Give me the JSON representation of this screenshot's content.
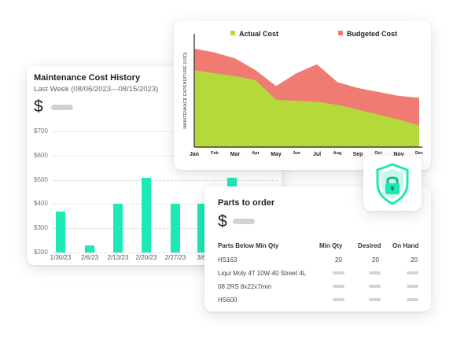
{
  "history": {
    "title": "Maintenance Cost History",
    "subtitle": "Last Week (08/06/2023—08/15/2023)",
    "currency": "$",
    "y_ticks": [
      "$700",
      "$600",
      "$500",
      "$400",
      "$300",
      "$200"
    ],
    "x_ticks": [
      "1/30/23",
      "2/6/23",
      "2/13/23",
      "2/20/23",
      "2/27/23",
      "3/6/",
      ""
    ],
    "chart_data": {
      "type": "bar",
      "categories": [
        "1/30/23",
        "2/6/23",
        "2/13/23",
        "2/20/23",
        "2/27/23",
        "3/6/",
        ""
      ],
      "values": [
        370,
        230,
        400,
        510,
        400,
        400,
        510
      ],
      "ylim": [
        200,
        700
      ]
    }
  },
  "area": {
    "legend": [
      {
        "label": "Actual Cost",
        "color": "#b5d93a"
      },
      {
        "label": "Budgeted Cost",
        "color": "#ef7b73"
      }
    ],
    "ylabel": "MAINTENANCE EXPENDITURE (USD)",
    "months": [
      "Jan",
      "Feb",
      "Mar",
      "Apr",
      "May",
      "Jun",
      "Jul",
      "Aug",
      "Sep",
      "Oct",
      "Nov",
      "Dec"
    ],
    "chart_data": {
      "type": "area",
      "x": [
        "Jan",
        "Feb",
        "Mar",
        "Apr",
        "May",
        "Jun",
        "Jul",
        "Aug",
        "Sep",
        "Oct",
        "Nov",
        "Dec"
      ],
      "series": [
        {
          "name": "Actual Cost",
          "values": [
            78,
            75,
            72,
            68,
            48,
            47,
            46,
            43,
            38,
            33,
            28,
            22
          ]
        },
        {
          "name": "Budgeted Cost",
          "values": [
            100,
            96,
            90,
            78,
            62,
            75,
            84,
            66,
            60,
            56,
            52,
            50
          ]
        }
      ],
      "ylim": [
        0,
        115
      ]
    }
  },
  "parts": {
    "title": "Parts to order",
    "currency": "$",
    "headers": [
      "Parts Below Min Qty",
      "Min Qty",
      "Desired",
      "On Hand"
    ],
    "rows": [
      {
        "name": "HS163",
        "min": "20",
        "desired": "20",
        "on_hand": "20"
      },
      {
        "name": "Liqui Moly 4T 10W-40 Street 4L",
        "min": "",
        "desired": "",
        "on_hand": ""
      },
      {
        "name": "08 2RS 8x22x7mm",
        "min": "",
        "desired": "",
        "on_hand": ""
      },
      {
        "name": "HS600",
        "min": "",
        "desired": "",
        "on_hand": ""
      }
    ]
  },
  "badge": {
    "icon": "shield-lock-icon",
    "color": "#1de9b6"
  }
}
